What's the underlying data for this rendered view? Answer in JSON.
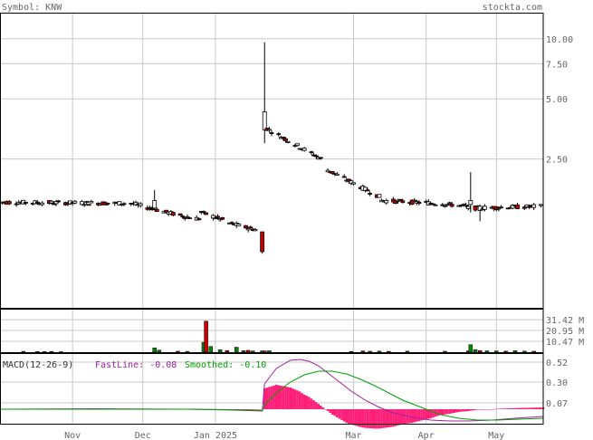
{
  "header": {
    "symbol_label": "Symbol: KNW",
    "site_label": "stockta.com"
  },
  "colors": {
    "up": "#ffffff",
    "down": "#cc0000",
    "volume": "#008800",
    "volume_alt": "#cc0000",
    "macd_hist": "#ff1e78",
    "fast_line": "#a020a0",
    "smoothed_line": "#00a000",
    "grid": "#c8c8c8",
    "text": "#666666"
  },
  "chart_data": [
    {
      "type": "candlestick",
      "panel": "price",
      "scale": "log",
      "ylim": [
        0.45,
        13.5
      ],
      "y_ticks": [
        10.0,
        7.5,
        5.0,
        2.5
      ],
      "y_tick_labels": [
        "10.00",
        "7.50",
        "5.00",
        "2.50"
      ],
      "x_ticks": [
        "Nov",
        "Dec",
        "Jan 2025",
        "Mar",
        "Apr",
        "May"
      ],
      "x_tick_days": [
        31,
        61,
        92,
        151,
        182,
        212
      ],
      "x_range_days": [
        0,
        232
      ],
      "segments": [
        {
          "from_day": 0,
          "to_day": 56,
          "start": 1.52,
          "end": 1.5,
          "low": 1.33,
          "high": 1.56
        },
        {
          "from_day": 56,
          "to_day": 68,
          "start": 1.5,
          "end": 1.38,
          "low": 1.25,
          "high": 1.55
        },
        {
          "from_day": 68,
          "to_day": 80,
          "start": 1.38,
          "end": 1.28,
          "low": 1.18,
          "high": 1.45
        },
        {
          "from_day": 80,
          "to_day": 86,
          "start": 1.28,
          "end": 1.25,
          "low": 1.15,
          "high": 1.38
        },
        {
          "from_day": 86,
          "to_day": 97,
          "start": 1.35,
          "end": 1.22,
          "low": 1.1,
          "high": 1.42
        },
        {
          "from_day": 97,
          "to_day": 113,
          "start": 1.2,
          "end": 1.08,
          "low": 0.92,
          "high": 1.25
        },
        {
          "from_day": 113,
          "to_day": 140,
          "start": 3.6,
          "end": 2.4,
          "low": 2.0,
          "high": 9.6
        },
        {
          "from_day": 140,
          "to_day": 163,
          "start": 2.2,
          "end": 1.6,
          "low": 1.45,
          "high": 2.3
        },
        {
          "from_day": 163,
          "to_day": 186,
          "start": 1.55,
          "end": 1.5,
          "low": 1.3,
          "high": 1.75
        },
        {
          "from_day": 186,
          "to_day": 200,
          "start": 1.5,
          "end": 1.45,
          "low": 1.3,
          "high": 1.62
        },
        {
          "from_day": 200,
          "to_day": 232,
          "start": 1.42,
          "end": 1.45,
          "low": 1.3,
          "high": 1.6
        }
      ],
      "special_bars": [
        {
          "day": 66,
          "open": 1.42,
          "high": 1.75,
          "low": 1.38,
          "close": 1.55
        },
        {
          "day": 112,
          "open": 1.08,
          "high": 1.08,
          "low": 0.84,
          "close": 0.86
        },
        {
          "day": 113,
          "open": 3.5,
          "high": 9.6,
          "low": 3.0,
          "close": 4.3
        },
        {
          "day": 201,
          "open": 1.48,
          "high": 2.15,
          "low": 1.35,
          "close": 1.55
        },
        {
          "day": 205,
          "open": 1.38,
          "high": 1.48,
          "low": 1.22,
          "close": 1.45
        }
      ]
    },
    {
      "type": "bar",
      "panel": "volume",
      "unit": "M",
      "ylim": [
        0,
        42
      ],
      "y_ticks": [
        31.42,
        20.95,
        10.47
      ],
      "y_tick_labels": [
        "31.42 M",
        "20.95 M",
        "10.47 M"
      ],
      "bars": [
        {
          "day": 10,
          "value": 0.8
        },
        {
          "day": 16,
          "value": 0.6
        },
        {
          "day": 19,
          "value": 0.5
        },
        {
          "day": 22,
          "value": 0.7
        },
        {
          "day": 26,
          "value": 0.4
        },
        {
          "day": 66,
          "value": 4.2
        },
        {
          "day": 68,
          "value": 2.0
        },
        {
          "day": 76,
          "value": 0.9
        },
        {
          "day": 80,
          "value": 0.8
        },
        {
          "day": 87,
          "value": 9.5
        },
        {
          "day": 88,
          "value": 30.0
        },
        {
          "day": 90,
          "value": 5.5
        },
        {
          "day": 94,
          "value": 2.4
        },
        {
          "day": 97,
          "value": 1.6
        },
        {
          "day": 101,
          "value": 4.8
        },
        {
          "day": 104,
          "value": 1.5
        },
        {
          "day": 106,
          "value": 1.8
        },
        {
          "day": 108,
          "value": 1.2
        },
        {
          "day": 112,
          "value": 1.3
        },
        {
          "day": 113,
          "value": 1.2
        },
        {
          "day": 115,
          "value": 1.4
        },
        {
          "day": 150,
          "value": 0.7
        },
        {
          "day": 155,
          "value": 1.2
        },
        {
          "day": 158,
          "value": 0.9
        },
        {
          "day": 162,
          "value": 1.0
        },
        {
          "day": 166,
          "value": 0.8
        },
        {
          "day": 174,
          "value": 1.0
        },
        {
          "day": 190,
          "value": 0.9
        },
        {
          "day": 200,
          "value": 1.2
        },
        {
          "day": 201,
          "value": 7.2
        },
        {
          "day": 203,
          "value": 2.5
        },
        {
          "day": 205,
          "value": 1.6
        },
        {
          "day": 208,
          "value": 1.3
        },
        {
          "day": 212,
          "value": 1.2
        },
        {
          "day": 216,
          "value": 1.0
        },
        {
          "day": 220,
          "value": 1.4
        },
        {
          "day": 224,
          "value": 1.0
        },
        {
          "day": 228,
          "value": 0.9
        }
      ]
    },
    {
      "type": "line",
      "panel": "macd",
      "title": "MACD(12-26-9)",
      "fast_label": "FastLine: -0.08",
      "smoothed_label": "Smoothed: -0.10",
      "ylim": [
        -0.16,
        0.62
      ],
      "y_ticks": [
        0.52,
        0.3,
        0.07
      ],
      "y_tick_labels": [
        "0.52",
        "0.30",
        "0.07"
      ],
      "series": [
        {
          "name": "FastLine",
          "x": [
            0,
            40,
            80,
            100,
            112,
            113,
            118,
            124,
            128,
            132,
            136,
            140,
            145,
            150,
            156,
            162,
            168,
            176,
            184,
            192,
            200,
            210,
            220,
            232
          ],
          "y": [
            0.0,
            0.005,
            0.0,
            -0.01,
            -0.02,
            0.28,
            0.45,
            0.54,
            0.55,
            0.53,
            0.48,
            0.4,
            0.3,
            0.2,
            0.1,
            0.02,
            -0.04,
            -0.09,
            -0.12,
            -0.13,
            -0.13,
            -0.12,
            -0.1,
            -0.08
          ]
        },
        {
          "name": "Smoothed",
          "x": [
            0,
            40,
            80,
            100,
            112,
            113,
            118,
            124,
            130,
            136,
            142,
            148,
            154,
            160,
            166,
            172,
            180,
            188,
            196,
            204,
            212,
            222,
            232
          ],
          "y": [
            0.0,
            0.0,
            0.0,
            -0.005,
            -0.015,
            0.05,
            0.18,
            0.3,
            0.38,
            0.42,
            0.42,
            0.39,
            0.33,
            0.26,
            0.18,
            0.1,
            0.02,
            -0.06,
            -0.1,
            -0.12,
            -0.12,
            -0.11,
            -0.1
          ]
        }
      ]
    }
  ]
}
